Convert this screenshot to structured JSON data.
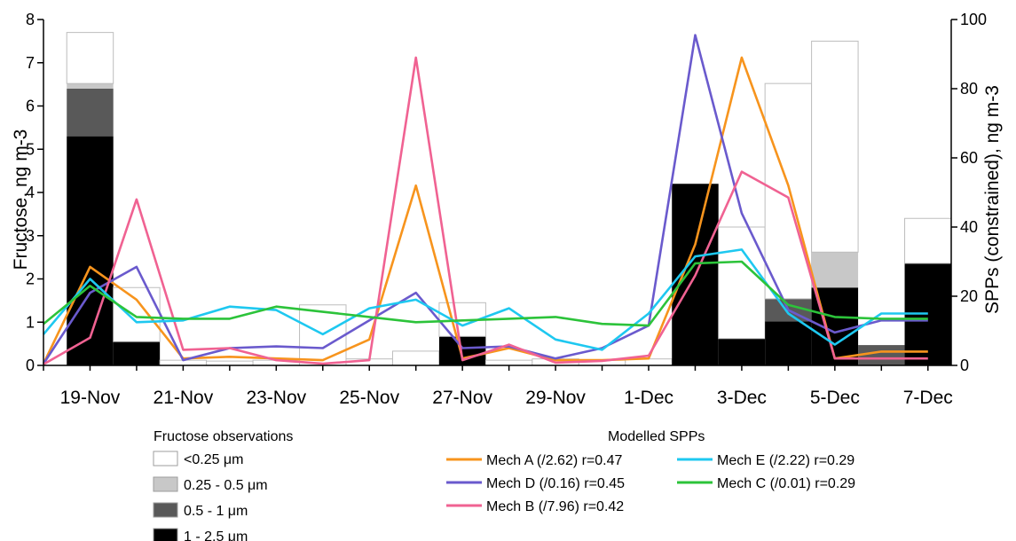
{
  "chart_data": {
    "type": "bar",
    "x_tick_labels": [
      "19-Nov",
      "21-Nov",
      "23-Nov",
      "25-Nov",
      "27-Nov",
      "29-Nov",
      "1-Dec",
      "3-Dec",
      "5-Dec",
      "7-Dec"
    ],
    "x_tick_day_index": [
      1,
      3,
      5,
      7,
      9,
      11,
      13,
      15,
      17,
      19
    ],
    "x_range_days": [
      0,
      19.5
    ],
    "left_axis": {
      "label": "Fructose, ng m-3",
      "range": [
        0,
        8
      ],
      "ticks": [
        0,
        1,
        2,
        3,
        4,
        5,
        6,
        7,
        8
      ]
    },
    "right_axis": {
      "label": "SPPs (constrained), ng m-3",
      "range": [
        0,
        100
      ],
      "ticks": [
        0,
        20,
        40,
        60,
        80,
        100
      ]
    },
    "bars": {
      "legend_title": "Fructose observations",
      "stack_order": [
        "1-2.5",
        "0.5-1",
        "0.25-0.5",
        "<0.25"
      ],
      "size_bins": [
        {
          "key": "<0.25",
          "label": "<0.25 μm",
          "color": "#ffffff"
        },
        {
          "key": "0.25-0.5",
          "label": "0.25 - 0.5 μm",
          "color": "#c8c8c8"
        },
        {
          "key": "0.5-1",
          "label": "0.5 - 1 μm",
          "color": "#595959"
        },
        {
          "key": "1-2.5",
          "label": "1 - 2.5 μm",
          "color": "#000000"
        }
      ],
      "samples": [
        {
          "start": 0.5,
          "end": 1.5,
          "values": {
            "1-2.5": 5.3,
            "0.5-1": 1.1,
            "0.25-0.5": 0.12,
            "<0.25": 1.18
          }
        },
        {
          "start": 1.5,
          "end": 2.5,
          "values": {
            "1-2.5": 0.55,
            "0.5-1": 0.0,
            "0.25-0.5": 0.0,
            "<0.25": 1.25
          }
        },
        {
          "start": 2.5,
          "end": 3.5,
          "values": {
            "1-2.5": 0.0,
            "0.5-1": 0.0,
            "0.25-0.5": 0.0,
            "<0.25": 0.12
          }
        },
        {
          "start": 3.5,
          "end": 4.5,
          "values": {
            "1-2.5": 0.0,
            "0.5-1": 0.0,
            "0.25-0.5": 0.0,
            "<0.25": 0.1
          }
        },
        {
          "start": 4.5,
          "end": 5.5,
          "values": {
            "1-2.5": 0.0,
            "0.5-1": 0.0,
            "0.25-0.5": 0.0,
            "<0.25": 0.12
          }
        },
        {
          "start": 5.5,
          "end": 6.5,
          "values": {
            "1-2.5": 0.0,
            "0.5-1": 0.0,
            "0.25-0.5": 0.0,
            "<0.25": 1.4
          }
        },
        {
          "start": 6.5,
          "end": 7.5,
          "values": {
            "1-2.5": 0.0,
            "0.5-1": 0.0,
            "0.25-0.5": 0.0,
            "<0.25": 0.15
          }
        },
        {
          "start": 7.5,
          "end": 8.5,
          "values": {
            "1-2.5": 0.0,
            "0.5-1": 0.0,
            "0.25-0.5": 0.0,
            "<0.25": 0.33
          }
        },
        {
          "start": 8.5,
          "end": 9.5,
          "values": {
            "1-2.5": 0.67,
            "0.5-1": 0.0,
            "0.25-0.5": 0.0,
            "<0.25": 0.78
          }
        },
        {
          "start": 9.5,
          "end": 10.5,
          "values": {
            "1-2.5": 0.0,
            "0.5-1": 0.0,
            "0.25-0.5": 0.0,
            "<0.25": 0.12
          }
        },
        {
          "start": 10.5,
          "end": 11.5,
          "values": {
            "1-2.5": 0.0,
            "0.5-1": 0.0,
            "0.25-0.5": 0.0,
            "<0.25": 0.15
          }
        },
        {
          "start": 11.5,
          "end": 12.5,
          "values": {
            "1-2.5": 0.0,
            "0.5-1": 0.0,
            "0.25-0.5": 0.0,
            "<0.25": 0.12
          }
        },
        {
          "start": 12.5,
          "end": 13.5,
          "values": {
            "1-2.5": 0.0,
            "0.5-1": 0.0,
            "0.25-0.5": 0.0,
            "<0.25": 0.15
          }
        },
        {
          "start": 13.5,
          "end": 14.5,
          "values": {
            "1-2.5": 4.2,
            "0.5-1": 0.0,
            "0.25-0.5": 0.0,
            "<0.25": 0.0
          }
        },
        {
          "start": 14.5,
          "end": 15.5,
          "values": {
            "1-2.5": 0.62,
            "0.5-1": 0.0,
            "0.25-0.5": 0.0,
            "<0.25": 2.58
          }
        },
        {
          "start": 15.5,
          "end": 16.5,
          "values": {
            "1-2.5": 1.02,
            "0.5-1": 0.52,
            "0.25-0.5": 0.0,
            "<0.25": 4.98
          }
        },
        {
          "start": 16.5,
          "end": 17.5,
          "values": {
            "1-2.5": 1.8,
            "0.5-1": 0.0,
            "0.25-0.5": 0.82,
            "<0.25": 4.88
          }
        },
        {
          "start": 17.5,
          "end": 18.5,
          "values": {
            "1-2.5": 0.0,
            "0.5-1": 0.47,
            "0.25-0.5": 0.0,
            "<0.25": 0.0
          }
        },
        {
          "start": 18.5,
          "end": 19.5,
          "values": {
            "1-2.5": 2.36,
            "0.5-1": 0.0,
            "0.25-0.5": 0.0,
            "<0.25": 1.04
          }
        }
      ]
    },
    "lines": {
      "legend_title": "Modelled SPPs",
      "axis": "right",
      "x": [
        0,
        1,
        2,
        3,
        4,
        5,
        6,
        7,
        8,
        9,
        10,
        11,
        12,
        13,
        14,
        15,
        16,
        17,
        18,
        19
      ],
      "series": [
        {
          "name": "Mech A (/2.62) r=0.47",
          "color": "#f7941d",
          "values": [
            0.5,
            28.5,
            19,
            2,
            2.5,
            2,
            1.5,
            7.5,
            52,
            2,
            5,
            1.5,
            1.5,
            2,
            35,
            89,
            52,
            2,
            4,
            4
          ]
        },
        {
          "name": "Mech D (/0.16) r=0.45",
          "color": "#6a5acd",
          "values": [
            0.5,
            21,
            28.5,
            1.5,
            5,
            5.5,
            5,
            13,
            21,
            5,
            5.5,
            2,
            5,
            11.5,
            95.5,
            44,
            16,
            9.5,
            13,
            13
          ]
        },
        {
          "name": "Mech B (/7.96) r=0.42",
          "color": "#f06292",
          "values": [
            0.3,
            8,
            48,
            4.5,
            5,
            1.5,
            0.5,
            1.5,
            89,
            1.5,
            6,
            0.8,
            1.3,
            2.8,
            26,
            56,
            48.5,
            2,
            2,
            2
          ]
        },
        {
          "name": "Mech E (/2.22) r=0.29",
          "color": "#1ec8f0",
          "values": [
            9,
            25,
            12.5,
            13,
            17,
            16,
            9,
            16.5,
            19,
            11.5,
            16.5,
            7.5,
            4.5,
            15,
            31.5,
            33.5,
            15,
            6,
            15,
            15
          ]
        },
        {
          "name": "Mech C (/0.01) r=0.29",
          "color": "#2cc33a",
          "values": [
            12,
            23,
            14,
            13.5,
            13.5,
            17,
            15.5,
            14,
            12.5,
            13,
            13.5,
            14,
            12,
            11.5,
            29.5,
            30,
            17.5,
            14,
            13.5,
            13.5
          ]
        }
      ]
    }
  }
}
